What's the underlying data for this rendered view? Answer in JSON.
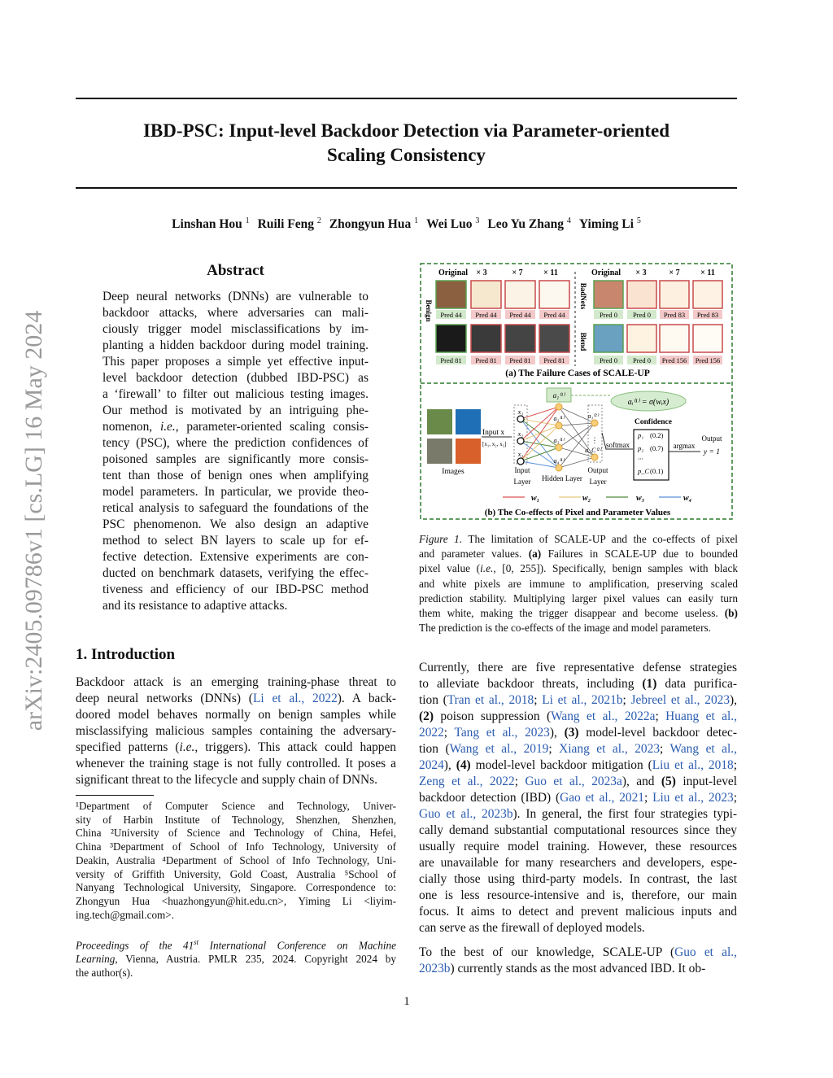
{
  "sidebar_stamp": "arXiv:2405.09786v1  [cs.LG]  16 May 2024",
  "title": {
    "line1": "IBD-PSC: Input-level Backdoor Detection via Parameter-oriented",
    "line2": "Scaling Consistency"
  },
  "authors": [
    {
      "name": "Linshan Hou",
      "sup": "1"
    },
    {
      "name": "Ruili Feng",
      "sup": "2"
    },
    {
      "name": "Zhongyun Hua",
      "sup": "1"
    },
    {
      "name": "Wei Luo",
      "sup": "3"
    },
    {
      "name": "Leo Yu Zhang",
      "sup": "4"
    },
    {
      "name": "Yiming Li",
      "sup": "5"
    }
  ],
  "abstract": {
    "heading": "Abstract",
    "lines": [
      [
        "Deep neural networks (DNNs) are vulnerable to"
      ],
      [
        "backdoor attacks, where adversaries can mali-"
      ],
      [
        "ciously trigger model misclassifications by im-"
      ],
      [
        "planting a hidden backdoor during model training."
      ],
      [
        "This paper proposes a simple yet effective input-"
      ],
      [
        "level backdoor detection (dubbed IBD-PSC) as"
      ],
      [
        "a ‘firewall’ to filter out malicious testing images."
      ],
      [
        "Our method is motivated by an intriguing phe-"
      ],
      [
        "nomenon, ",
        {
          "i": "i.e."
        },
        ", parameter-oriented scaling consis-"
      ],
      [
        "tency (PSC), where the prediction confidences of"
      ],
      [
        "poisoned samples are significantly more consis-"
      ],
      [
        "tent than those of benign ones when amplifying"
      ],
      [
        "model parameters. In particular, we provide theo-"
      ],
      [
        "retical analysis to safeguard the foundations of the"
      ],
      [
        "PSC phenomenon.  We also design an adaptive"
      ],
      [
        "method to select BN layers to scale up for ef-"
      ],
      [
        "fective detection. Extensive experiments are con-"
      ],
      [
        "ducted on benchmark datasets, verifying the effec-"
      ],
      [
        "tiveness and efficiency of our IBD-PSC method"
      ],
      [
        "and its resistance to adaptive attacks."
      ]
    ]
  },
  "intro": {
    "heading": "1. Introduction",
    "lines": [
      [
        "Backdoor attack is an emerging training-phase threat to"
      ],
      [
        "deep neural networks (DNNs) (",
        {
          "link": "Li et al., 2022"
        },
        ").  A back-"
      ],
      [
        "doored model behaves normally on benign samples while"
      ],
      [
        "misclassifying malicious samples containing the adversary-"
      ],
      [
        "specified patterns (",
        {
          "i": "i.e."
        },
        ", triggers). This attack could happen"
      ],
      [
        "whenever the training stage is not fully controlled. It poses a"
      ],
      [
        "significant threat to the lifecycle and supply chain of DNNs."
      ]
    ]
  },
  "footnote": {
    "lines": [
      [
        "¹Department of Computer Science and Technology, Univer-"
      ],
      [
        "sity of Harbin Institute of Technology, Shenzhen, Shenzhen,"
      ],
      [
        "China ²University of Science and Technology of China, Hefei,"
      ],
      [
        "China ³Department of School of Info Technology, University of"
      ],
      [
        "Deakin, Australia ⁴Department of School of Info Technology, Uni-"
      ],
      [
        "versity of Griffith University, Gold Coast, Australia ⁵School of"
      ],
      [
        "Nanyang Technological University, Singapore. Correspondence to:"
      ],
      [
        "Zhongyun Hua <huazhongyun@hit.edu.cn>, Yiming Li <liyim-"
      ],
      [
        "ing.tech@gmail.com>."
      ]
    ]
  },
  "proceedings": {
    "lines": [
      [
        {
          "i": "Proceedings of the 41"
        },
        {
          "i": "st"
        },
        {
          "i": " International Conference on Machine"
        }
      ],
      [
        {
          "i": "Learning"
        },
        ", Vienna, Austria. PMLR 235, 2024. Copyright 2024 by"
      ],
      [
        "the author(s)."
      ]
    ]
  },
  "figure": {
    "part_a": {
      "col_headers": [
        "Original",
        "× 3",
        "× 7",
        "× 11"
      ],
      "row_labels": [
        "Benign",
        "BadNets",
        "Blend"
      ],
      "preds_left": [
        [
          "Pred 44",
          "Pred 44",
          "Pred 44",
          "Pred 44"
        ],
        [
          "Pred 81",
          "Pred 81",
          "Pred 81",
          "Pred 81"
        ]
      ],
      "preds_right": [
        [
          "Pred 0",
          "Pred 0",
          "Pred 83",
          "Pred 83"
        ],
        [
          "Pred 0",
          "Pred 0",
          "Pred 156",
          "Pred 156"
        ]
      ],
      "caption": "(a) The Failure Cases of SCALE-UP"
    },
    "part_b": {
      "images_label": "Images",
      "input_label": "Input",
      "input_var": "x",
      "input_vector": "[x₁, x₂, x₃]",
      "input_nodes": [
        "x₁",
        "x₂",
        "x₃"
      ],
      "hidden_nodes": [
        "a₁⁽¹⁾",
        "a₂⁽¹⁾",
        "a₃⁽¹⁾",
        "a₄⁽¹⁾"
      ],
      "output_nodes": [
        "a₁⁽²⁾",
        "a_C⁽²⁾"
      ],
      "highlight_node": "a₁⁽¹⁾",
      "equation": "aᵢ⁽¹⁾ = σ(wᵢx)",
      "input_layer": [
        "Input",
        "Layer"
      ],
      "hidden_layer": "Hidden Layer",
      "output_layer": [
        "Output",
        "Layer"
      ],
      "softmax": "softmax",
      "confidence_title": "Confidence",
      "confidences": [
        {
          "label": "p₁",
          "value": "(0.2)"
        },
        {
          "label": "p₂",
          "value": "(0.7)"
        },
        {
          "label": "···",
          "value": ""
        },
        {
          "label": "p_C",
          "value": "(0.1)"
        }
      ],
      "argmax": "argmax",
      "output_label": "Output",
      "output_value": "y = 1",
      "legend": [
        {
          "label": "w₁",
          "color": "#d9534f"
        },
        {
          "label": "w₂",
          "color": "#e8c77a"
        },
        {
          "label": "w₃",
          "color": "#4f8a3a"
        },
        {
          "label": "w₄",
          "color": "#5b8fd6"
        }
      ],
      "caption": "(b) The Co-effects of Pixel and Parameter Values"
    },
    "colors": {
      "frame": "#2f7a2f",
      "original_border": "#5aa050",
      "scaled_border": "#c84a4a",
      "pred_ok": "#d3e9cc",
      "pred_bad": "#f3c9c9"
    },
    "caption_lines": [
      [
        {
          "i": "Figure 1."
        },
        " The limitation of SCALE-UP and the co-effects of pixel"
      ],
      [
        "and parameter values. ",
        {
          "b": "(a)"
        },
        " Failures in SCALE-UP due to bounded"
      ],
      [
        "pixel value (",
        {
          "i": "i.e."
        },
        ", [0, 255]). Specifically, benign samples with black"
      ],
      [
        "and white pixels are immune to amplification, preserving scaled"
      ],
      [
        "prediction stability. Multiplying larger pixel values can easily turn"
      ],
      [
        "them white, making the trigger disappear and become useless. ",
        {
          "b": "(b)"
        }
      ],
      [
        "The prediction is the co-effects of the image and model parameters."
      ]
    ]
  },
  "right_body": {
    "para1": [
      [
        "Currently, there are five representative defense strategies"
      ],
      [
        "to alleviate backdoor threats, including ",
        {
          "b": "(1)"
        },
        " data purifica-"
      ],
      [
        "tion (",
        {
          "link": "Tran et al., 2018"
        },
        "; ",
        {
          "link": "Li et al., 2021b"
        },
        "; ",
        {
          "link": "Jebreel et al., 2023"
        },
        "),"
      ],
      [
        {
          "b": "(2)"
        },
        " poison suppression (",
        {
          "link": "Wang et al., 2022a"
        },
        "; ",
        {
          "link": "Huang et al.,"
        }
      ],
      [
        {
          "link": "2022"
        },
        "; ",
        {
          "link": "Tang et al., 2023"
        },
        "), ",
        {
          "b": "(3)"
        },
        " model-level backdoor detec-"
      ],
      [
        "tion (",
        {
          "link": "Wang et al., 2019"
        },
        "; ",
        {
          "link": "Xiang et al., 2023"
        },
        "; ",
        {
          "link": "Wang et al.,"
        }
      ],
      [
        {
          "link": "2024"
        },
        "), ",
        {
          "b": "(4)"
        },
        " model-level backdoor mitigation (",
        {
          "link": "Liu et al., 2018"
        },
        ";"
      ],
      [
        {
          "link": "Zeng et al., 2022"
        },
        "; ",
        {
          "link": "Guo et al., 2023a"
        },
        "), and ",
        {
          "b": "(5)"
        },
        " input-level"
      ],
      [
        "backdoor detection (IBD) (",
        {
          "link": "Gao et al., 2021"
        },
        "; ",
        {
          "link": "Liu et al., 2023"
        },
        ";"
      ],
      [
        {
          "link": "Guo et al., 2023b"
        },
        "). In general, the first four strategies typi-"
      ],
      [
        "cally demand substantial computational resources since they"
      ],
      [
        "usually require model training.  However, these resources"
      ],
      [
        "are unavailable for many researchers and developers, espe-"
      ],
      [
        "cially those using third-party models.  In contrast, the last"
      ],
      [
        "one is less resource-intensive and is, therefore, our main"
      ],
      [
        "focus.  It aims to detect and prevent malicious inputs and"
      ],
      [
        "can serve as the firewall of deployed models."
      ]
    ],
    "para2": [
      [
        "To the best of our knowledge, SCALE-UP (",
        {
          "link": "Guo et al.,"
        }
      ],
      [
        {
          "link": "2023b"
        },
        ") currently stands as the most advanced IBD. It ob-"
      ]
    ]
  },
  "page_number": "1"
}
